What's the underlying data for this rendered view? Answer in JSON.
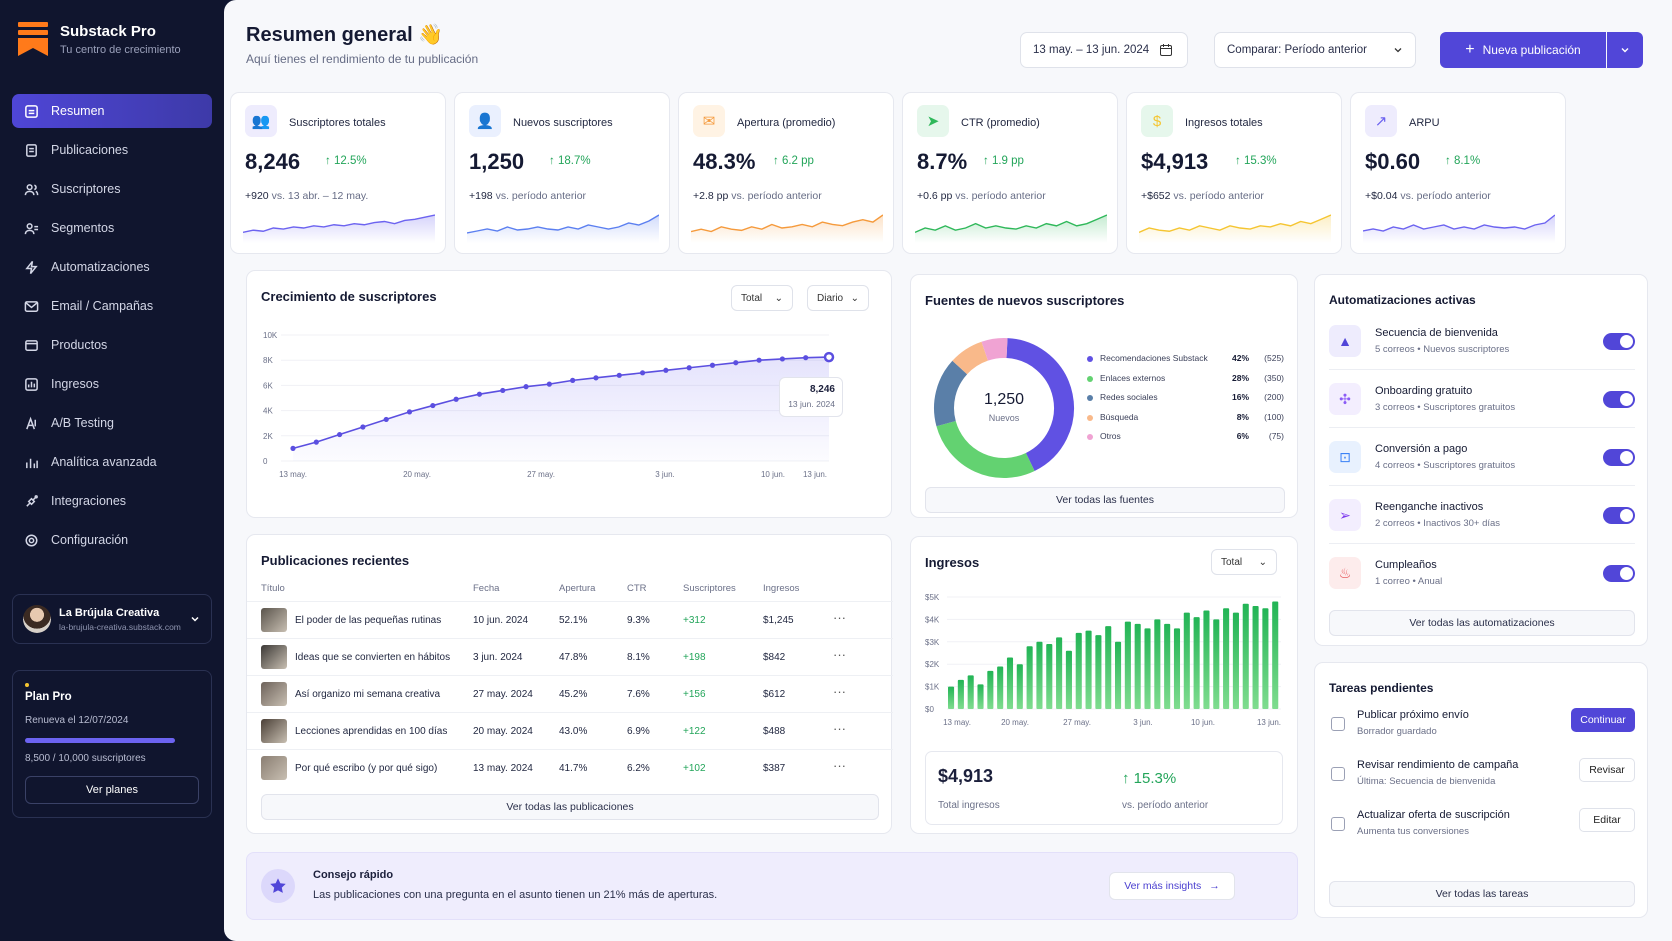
{
  "brand": {
    "name": "Substack Pro",
    "tagline": "Tu centro de crecimiento"
  },
  "nav": [
    {
      "label": "Resumen",
      "icon": "home-icon",
      "active": true
    },
    {
      "label": "Publicaciones",
      "icon": "document-icon"
    },
    {
      "label": "Suscriptores",
      "icon": "users-icon"
    },
    {
      "label": "Segmentos",
      "icon": "segment-icon"
    },
    {
      "label": "Automatizaciones",
      "icon": "bolt-icon"
    },
    {
      "label": "Email / Campañas",
      "icon": "mail-icon"
    },
    {
      "label": "Productos",
      "icon": "box-icon"
    },
    {
      "label": "Ingresos",
      "icon": "money-icon"
    },
    {
      "label": "A/B Testing",
      "icon": "ab-icon"
    },
    {
      "label": "Analítica avanzada",
      "icon": "bar-chart-icon"
    },
    {
      "label": "Integraciones",
      "icon": "plug-icon"
    },
    {
      "label": "Configuración",
      "icon": "gear-icon"
    }
  ],
  "account": {
    "name": "La Brújula Creativa",
    "url": "la-brujula-creativa.substack.com"
  },
  "plan": {
    "title": "Plan Pro",
    "renew": "Renueva el 12/07/2024",
    "subs": "8,500 / 10,000 suscriptores",
    "progress": 0.85,
    "button": "Ver planes"
  },
  "header": {
    "title": "Resumen general 👋",
    "subtitle": "Aquí tienes el rendimiento de tu publicación",
    "date_range": "13 may. – 13 jun. 2024",
    "compare": "Comparar: Período anterior",
    "new_post": "Nueva publicación"
  },
  "kpis": [
    {
      "label": "Suscriptores totales",
      "value": "8,246",
      "delta": "12.5%",
      "note_val": "+920",
      "note": " vs. 13 abr. – 12 may.",
      "color": "#6c63f0",
      "bg": "#eeecfd",
      "icon": "users-icon",
      "spark": [
        4,
        5,
        4.5,
        6,
        5.5,
        6.5,
        6,
        7,
        6.5,
        7.5,
        7,
        8,
        7.5,
        8.5,
        9,
        8,
        9.5,
        10,
        11,
        12
      ]
    },
    {
      "label": "Nuevos suscriptores",
      "value": "1,250",
      "delta": "18.7%",
      "note_val": "+198",
      "note": " vs. período anterior",
      "color": "#5b7ff0",
      "bg": "#eaf0fe",
      "icon": "user-plus-icon",
      "spark": [
        4,
        5,
        6,
        5,
        7,
        5.5,
        6,
        7,
        6,
        5.5,
        7,
        6,
        8,
        7,
        6,
        7,
        9,
        8,
        10,
        13
      ]
    },
    {
      "label": "Apertura (promedio)",
      "value": "48.3%",
      "delta": "6.2 pp",
      "note_val": "+2.8 pp",
      "note": " vs. período anterior",
      "color": "#f59a3c",
      "bg": "#fff3e4",
      "icon": "mail-open-icon",
      "spark": [
        4,
        5,
        4,
        6,
        5,
        4.5,
        6,
        5,
        7,
        5.5,
        6,
        7,
        6,
        8,
        7,
        6.5,
        8,
        9,
        8,
        11
      ]
    },
    {
      "label": "CTR (promedio)",
      "value": "8.7%",
      "delta": "1.9 pp",
      "note_val": "+0.6 pp",
      "note": " vs. período anterior",
      "color": "#2fb85a",
      "bg": "#e6f7ec",
      "icon": "cursor-icon",
      "spark": [
        4,
        6,
        5,
        7,
        5,
        6,
        8,
        6,
        7,
        6,
        5.5,
        7,
        6,
        8,
        7,
        9,
        7,
        8,
        10,
        12
      ]
    },
    {
      "label": "Ingresos totales",
      "value": "$4,913",
      "delta": "15.3%",
      "note_val": "+$652",
      "note": " vs. período anterior",
      "color": "#f5c531",
      "bg": "#e6f7ec",
      "icon": "dollar-icon",
      "spark": [
        4,
        6,
        5,
        4.5,
        6,
        5,
        7,
        6,
        5,
        7,
        6,
        5.5,
        7,
        6.5,
        8,
        7,
        9,
        8,
        10,
        12
      ]
    },
    {
      "label": "ARPU",
      "value": "$0.60",
      "delta": "8.1%",
      "note_val": "+$0.04",
      "note": " vs. período anterior",
      "color": "#6c63f0",
      "bg": "#eeecfd",
      "icon": "trend-icon",
      "spark": [
        5,
        6,
        5,
        7,
        6,
        8,
        6,
        7,
        8,
        6,
        7,
        6,
        8,
        7,
        6.5,
        7,
        6,
        8,
        9,
        13
      ]
    }
  ],
  "growth": {
    "title": "Crecimiento de suscriptores",
    "sel1": "Total",
    "sel2": "Diario",
    "tooltip_value": "8,246",
    "tooltip_date": "13 jun. 2024"
  },
  "chart_data": [
    {
      "type": "line",
      "title": "Crecimiento de suscriptores",
      "y_ticks": [
        "10K",
        "8K",
        "6K",
        "4K",
        "2K",
        "0"
      ],
      "ylim": [
        0,
        10000
      ],
      "x_ticks": [
        "13 may.",
        "20 may.",
        "27 may.",
        "3 jun.",
        "10 jun.",
        "13 jun."
      ],
      "values": [
        1000,
        1500,
        2100,
        2700,
        3300,
        3900,
        4400,
        4900,
        5300,
        5600,
        5900,
        6100,
        6400,
        6600,
        6800,
        7000,
        7200,
        7400,
        7600,
        7800,
        8000,
        8100,
        8200,
        8246
      ]
    },
    {
      "type": "pie",
      "title": "Fuentes de nuevos suscriptores",
      "center_value": "1,250",
      "center_label": "Nuevos",
      "slices": [
        {
          "name": "Recomendaciones Substack",
          "pct": "42%",
          "count": "(525)",
          "value": 42,
          "color": "#6051e3"
        },
        {
          "name": "Enlaces externos",
          "pct": "28%",
          "count": "(350)",
          "value": 28,
          "color": "#63d271"
        },
        {
          "name": "Redes sociales",
          "pct": "16%",
          "count": "(200)",
          "value": 16,
          "color": "#5a7fa8"
        },
        {
          "name": "Búsqueda",
          "pct": "8%",
          "count": "(100)",
          "value": 8,
          "color": "#f9b98a"
        },
        {
          "name": "Otros",
          "pct": "6%",
          "count": "(75)",
          "value": 6,
          "color": "#f0a3d3"
        }
      ]
    },
    {
      "type": "bar",
      "title": "Ingresos",
      "y_ticks": [
        "$5K",
        "$4K",
        "$3K",
        "$2K",
        "$1K",
        "$0"
      ],
      "ylim": [
        0,
        5000
      ],
      "x_ticks": [
        "13 may.",
        "20 may.",
        "27 may.",
        "3 jun.",
        "10 jun.",
        "13 jun."
      ],
      "values": [
        1000,
        1300,
        1500,
        1100,
        1700,
        1900,
        2300,
        2000,
        2800,
        3000,
        2900,
        3200,
        2600,
        3400,
        3500,
        3300,
        3700,
        3000,
        3900,
        3800,
        3600,
        4000,
        3800,
        3600,
        4300,
        4100,
        4400,
        4000,
        4500,
        4300,
        4700,
        4600,
        4500,
        4800
      ]
    }
  ],
  "sources": {
    "title": "Fuentes de nuevos suscriptores",
    "link": "Ver todas las fuentes"
  },
  "posts": {
    "title": "Publicaciones recientes",
    "headers": [
      "Título",
      "Fecha",
      "Apertura",
      "CTR",
      "Suscriptores",
      "Ingresos"
    ],
    "link": "Ver todas las publicaciones",
    "rows": [
      {
        "title": "El poder de las pequeñas rutinas",
        "date": "10 jun. 2024",
        "open": "52.1%",
        "ctr": "9.3%",
        "subs": "+312",
        "rev": "$1,245"
      },
      {
        "title": "Ideas que se convierten en hábitos",
        "date": "3 jun. 2024",
        "open": "47.8%",
        "ctr": "8.1%",
        "subs": "+198",
        "rev": "$842"
      },
      {
        "title": "Así organizo mi semana creativa",
        "date": "27 may. 2024",
        "open": "45.2%",
        "ctr": "7.6%",
        "subs": "+156",
        "rev": "$612"
      },
      {
        "title": "Lecciones aprendidas en 100 días",
        "date": "20 may. 2024",
        "open": "43.0%",
        "ctr": "6.9%",
        "subs": "+122",
        "rev": "$488"
      },
      {
        "title": "Por qué escribo (y por qué sigo)",
        "date": "13 may. 2024",
        "open": "41.7%",
        "ctr": "6.2%",
        "subs": "+102",
        "rev": "$387"
      }
    ]
  },
  "revenue": {
    "title": "Ingresos",
    "sel": "Total",
    "total": "$4,913",
    "total_label": "Total ingresos",
    "delta": "15.3%",
    "delta_label": "vs. período anterior"
  },
  "automations": {
    "title": "Automatizaciones activas",
    "link": "Ver todas las automatizaciones",
    "items": [
      {
        "name": "Secuencia de bienvenida",
        "desc": "5 correos • Nuevos suscriptores",
        "icon": "rocket-icon",
        "color": "#5146d8",
        "bg": "#eeecfd"
      },
      {
        "name": "Onboarding gratuito",
        "desc": "3 correos • Suscriptores gratuitos",
        "icon": "puzzle-icon",
        "color": "#8b5cf6",
        "bg": "#f3eefe"
      },
      {
        "name": "Conversión a pago",
        "desc": "4 correos • Suscriptores gratuitos",
        "icon": "upgrade-icon",
        "color": "#3b82f6",
        "bg": "#e8f1fe"
      },
      {
        "name": "Reenganche inactivos",
        "desc": "2 correos • Inactivos 30+ días",
        "icon": "send-icon",
        "color": "#7c3aed",
        "bg": "#f3eefe"
      },
      {
        "name": "Cumpleaños",
        "desc": "1 correo • Anual",
        "icon": "cake-icon",
        "color": "#e5484d",
        "bg": "#fdecec"
      }
    ]
  },
  "tasks": {
    "title": "Tareas pendientes",
    "link": "Ver todas las tareas",
    "items": [
      {
        "name": "Publicar próximo envío",
        "desc": "Borrador guardado",
        "btn": "Continuar",
        "primary": true
      },
      {
        "name": "Revisar rendimiento de campaña",
        "desc": "Última: Secuencia de bienvenida",
        "btn": "Revisar"
      },
      {
        "name": "Actualizar oferta de suscripción",
        "desc": "Aumenta tus conversiones",
        "btn": "Editar"
      }
    ]
  },
  "tip": {
    "title": "Consejo rápido",
    "text": "Las publicaciones con una pregunta en el asunto tienen un 21% más de aperturas.",
    "link": "Ver más insights"
  }
}
